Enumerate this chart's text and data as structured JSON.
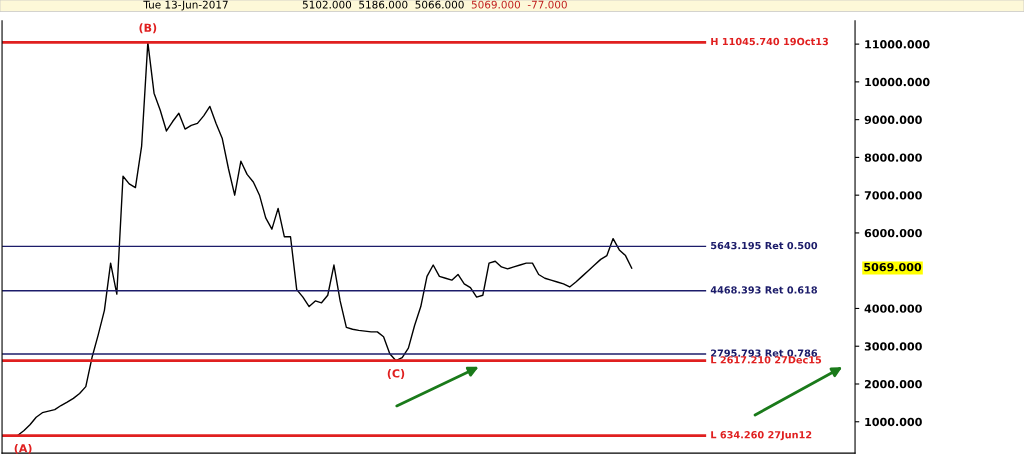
{
  "chart_data": {
    "type": "line",
    "categories": [
      null,
      null,
      null,
      null,
      null,
      null,
      null,
      null,
      null,
      null,
      null,
      null,
      null,
      null,
      null,
      null,
      null,
      null,
      null,
      null,
      null,
      null,
      null,
      null,
      null,
      null,
      null,
      null,
      null,
      null,
      null,
      null,
      null,
      null,
      null,
      null,
      null,
      null,
      null,
      null,
      null,
      null,
      null,
      null,
      null,
      null,
      null,
      null,
      null,
      null,
      null,
      null,
      null,
      null,
      null,
      null,
      null,
      null,
      null,
      null,
      null,
      null,
      null,
      null,
      null,
      null,
      null,
      null,
      null,
      null,
      null,
      null,
      null,
      null,
      null,
      null,
      null,
      null,
      null,
      null,
      null,
      null,
      null,
      null,
      null,
      null,
      null,
      null,
      null,
      null,
      null,
      null,
      null,
      null,
      null,
      null,
      null,
      null,
      null,
      null
    ],
    "series": [
      {
        "color": "#000000",
        "values": [
          634.26,
          760,
          920,
          1120,
          1240,
          1280,
          1320,
          1430,
          1520,
          1620,
          1750,
          1930,
          2700,
          3300,
          3950,
          5200,
          4380,
          7500,
          7300,
          7200,
          8300,
          11045.74,
          9700,
          9250,
          8700,
          8950,
          9170,
          8750,
          8850,
          8900,
          9100,
          9350,
          8900,
          8500,
          7700,
          7000,
          7900,
          7550,
          7350,
          7000,
          6400,
          6100,
          6650,
          5900,
          5900,
          4500,
          4300,
          4050,
          4200,
          4150,
          4350,
          5150,
          4200,
          3500,
          3450,
          3420,
          3400,
          3380,
          3380,
          3250,
          2800,
          2617.21,
          2700,
          2950,
          3550,
          4050,
          4850,
          5150,
          4850,
          4800,
          4750,
          4900,
          4650,
          4550,
          4300,
          4350,
          5200,
          5250,
          5100,
          5050,
          5100,
          5150,
          5200,
          5200,
          4900,
          4800,
          4750,
          4700,
          4650,
          4570,
          4700,
          4850,
          5000,
          5150,
          5300,
          5400,
          5850,
          5550,
          5400,
          5069
        ]
      }
    ],
    "ylim": [
      170,
      11620
    ],
    "yticks": [
      {
        "value": 1000,
        "label": "1000.000"
      },
      {
        "value": 2000,
        "label": "2000.000"
      },
      {
        "value": 3000,
        "label": "3000.000"
      },
      {
        "value": 4000,
        "label": "4000.000"
      },
      {
        "value": 6000,
        "label": "6000.000"
      },
      {
        "value": 7000,
        "label": "7000.000"
      },
      {
        "value": 8000,
        "label": "8000.000"
      },
      {
        "value": 9000,
        "label": "9000.000"
      },
      {
        "value": 10000,
        "label": "10000.000"
      },
      {
        "value": 11000,
        "label": "11000.000"
      }
    ],
    "tick_labels": "y",
    "grid": false,
    "legend": false,
    "marker": "none",
    "line_style": "solid",
    "ref_lines": [
      {
        "axis": "y",
        "value": 11045.74,
        "label": "H 11045.740 19Oct13",
        "color": "#e02020"
      },
      {
        "axis": "y",
        "value": 5643.195,
        "label": "5643.195 Ret 0.500",
        "color": "#1c1c6a"
      },
      {
        "axis": "y",
        "value": 4468.393,
        "label": "4468.393 Ret 0.618",
        "color": "#1c1c6a"
      },
      {
        "axis": "y",
        "value": 2795.793,
        "label": "2795.793 Ret 0.786",
        "color": "#1c1c6a"
      },
      {
        "axis": "y",
        "value": 2617.21,
        "label": "L 2617.210 27Dec15",
        "color": "#e02020"
      },
      {
        "axis": "y",
        "value": 634.26,
        "label": "L 634.260 27Jun12",
        "color": "#e02020"
      }
    ],
    "annotations": [
      "Tue 13-Jun-2017",
      "5102.000",
      "5186.000",
      "5066.000",
      "5069.000",
      "-77.000",
      {
        "text": "(A)",
        "y": 634.26
      },
      {
        "text": "(B)",
        "y": 11045.74
      },
      {
        "text": "(C)",
        "y": 2617.21
      },
      "5069.000"
    ]
  }
}
